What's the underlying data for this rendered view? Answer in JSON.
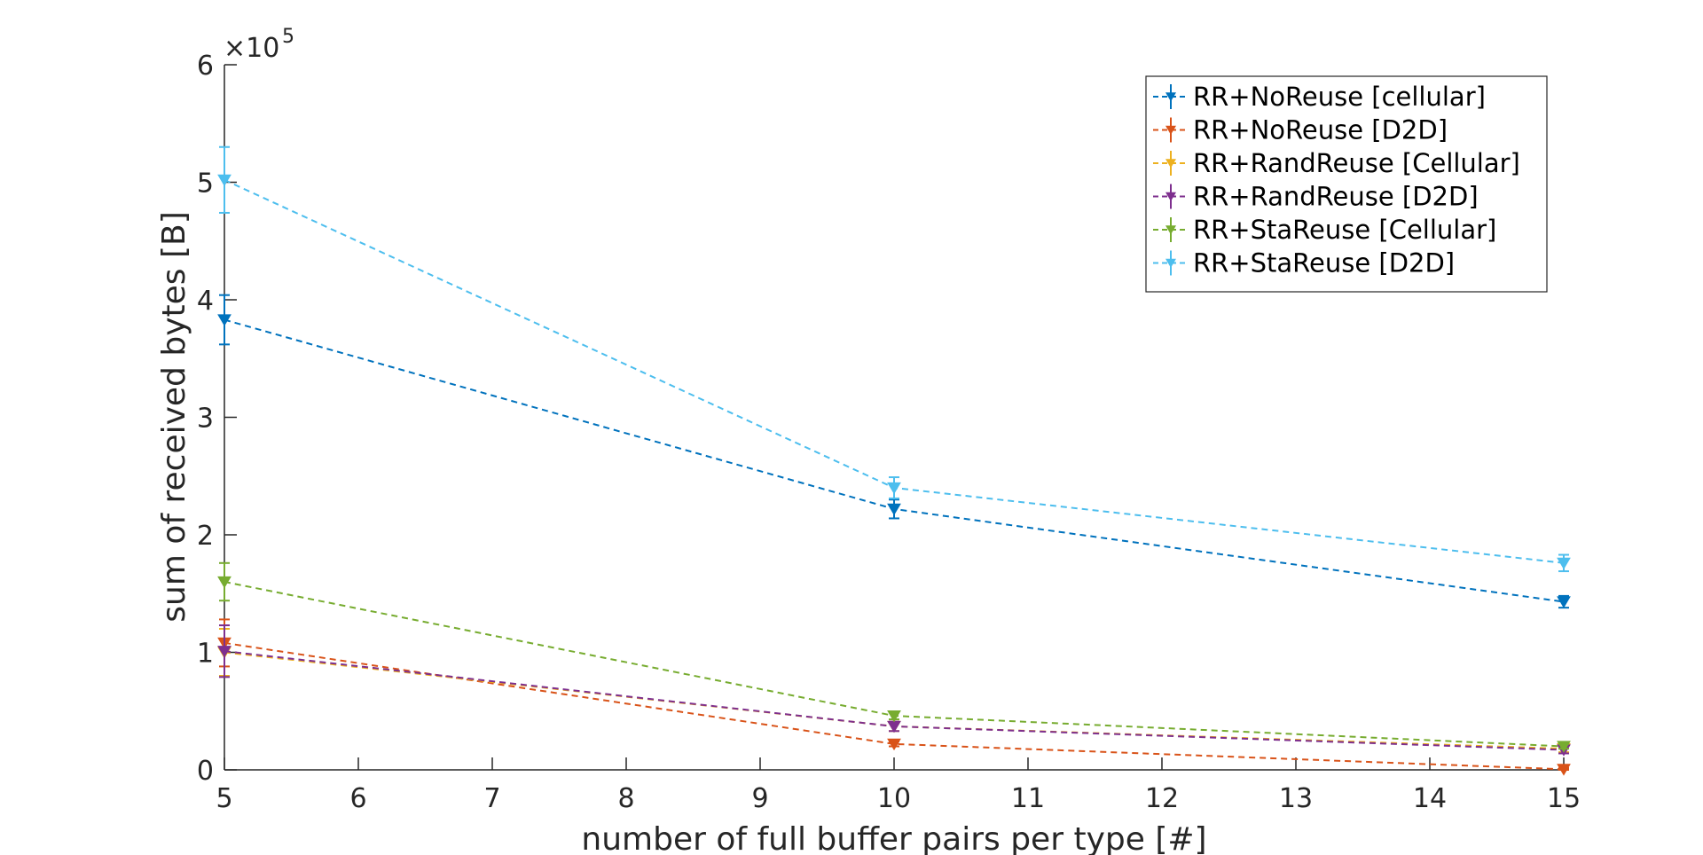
{
  "chart_data": {
    "type": "line",
    "title": "",
    "xlabel": "number of full buffer pairs per type [#]",
    "ylabel": "sum of received bytes [B]",
    "y_exponent_label": "×10",
    "y_exponent_power": "5",
    "xlim": [
      5,
      15
    ],
    "ylim": [
      0,
      600000
    ],
    "x_ticks": [
      "5",
      "6",
      "7",
      "8",
      "9",
      "10",
      "11",
      "12",
      "13",
      "14",
      "15"
    ],
    "y_ticks": [
      "0",
      "1",
      "2",
      "3",
      "4",
      "5",
      "6"
    ],
    "grid": false,
    "legend_position": "top-right",
    "x": [
      5,
      10,
      15
    ],
    "series": [
      {
        "name": "RR+NoReuse [cellular]",
        "color": "#0072BD",
        "values": [
          383000,
          222000,
          143000
        ],
        "errors": [
          21000,
          8000,
          5000
        ]
      },
      {
        "name": "RR+NoReuse [D2D]",
        "color": "#D95319",
        "values": [
          108000,
          22000,
          500
        ],
        "errors": [
          20000,
          2000,
          1000
        ]
      },
      {
        "name": "RR+RandReuse [Cellular]",
        "color": "#EDB120",
        "values": [
          100000,
          37000,
          18000
        ],
        "errors": [
          20000,
          4000,
          3000
        ]
      },
      {
        "name": "RR+RandReuse [D2D]",
        "color": "#7E2F8E",
        "values": [
          101000,
          37000,
          17000
        ],
        "errors": [
          22000,
          4000,
          3000
        ]
      },
      {
        "name": "RR+StaReuse [Cellular]",
        "color": "#77AC30",
        "values": [
          160000,
          46000,
          20000
        ],
        "errors": [
          16000,
          3000,
          2000
        ]
      },
      {
        "name": "RR+StaReuse [D2D]",
        "color": "#4DBEEE",
        "values": [
          502000,
          240000,
          176000
        ],
        "errors": [
          28000,
          9000,
          7000
        ]
      }
    ]
  }
}
